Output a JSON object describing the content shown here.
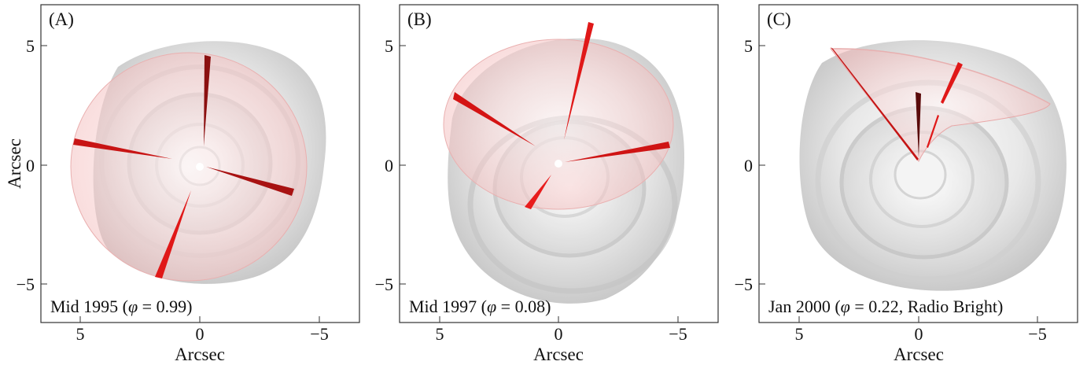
{
  "figure": {
    "y_axis_title": "Arcsec",
    "x_axis_title": "Arcsec",
    "x_ticks": [
      "5",
      "0",
      "−5"
    ],
    "y_ticks": [
      "5",
      "0",
      "−5"
    ],
    "panels": [
      {
        "id": "A",
        "label": "(A)",
        "caption_prefix": "Mid 1995 (",
        "caption_symbol": "φ",
        "caption_suffix": " = 0.99)"
      },
      {
        "id": "B",
        "label": "(B)",
        "caption_prefix": "Mid 1997 (",
        "caption_symbol": "φ",
        "caption_suffix": " = 0.08)"
      },
      {
        "id": "C",
        "label": "(C)",
        "caption_prefix": "Jan 2000 (",
        "caption_symbol": "φ",
        "caption_suffix": " = 0.22, Radio Bright)"
      }
    ],
    "colors": {
      "shell_gray": "#c8c8c8",
      "cone_pink": "#f4c4c4",
      "jet_red": "#d41010"
    }
  }
}
